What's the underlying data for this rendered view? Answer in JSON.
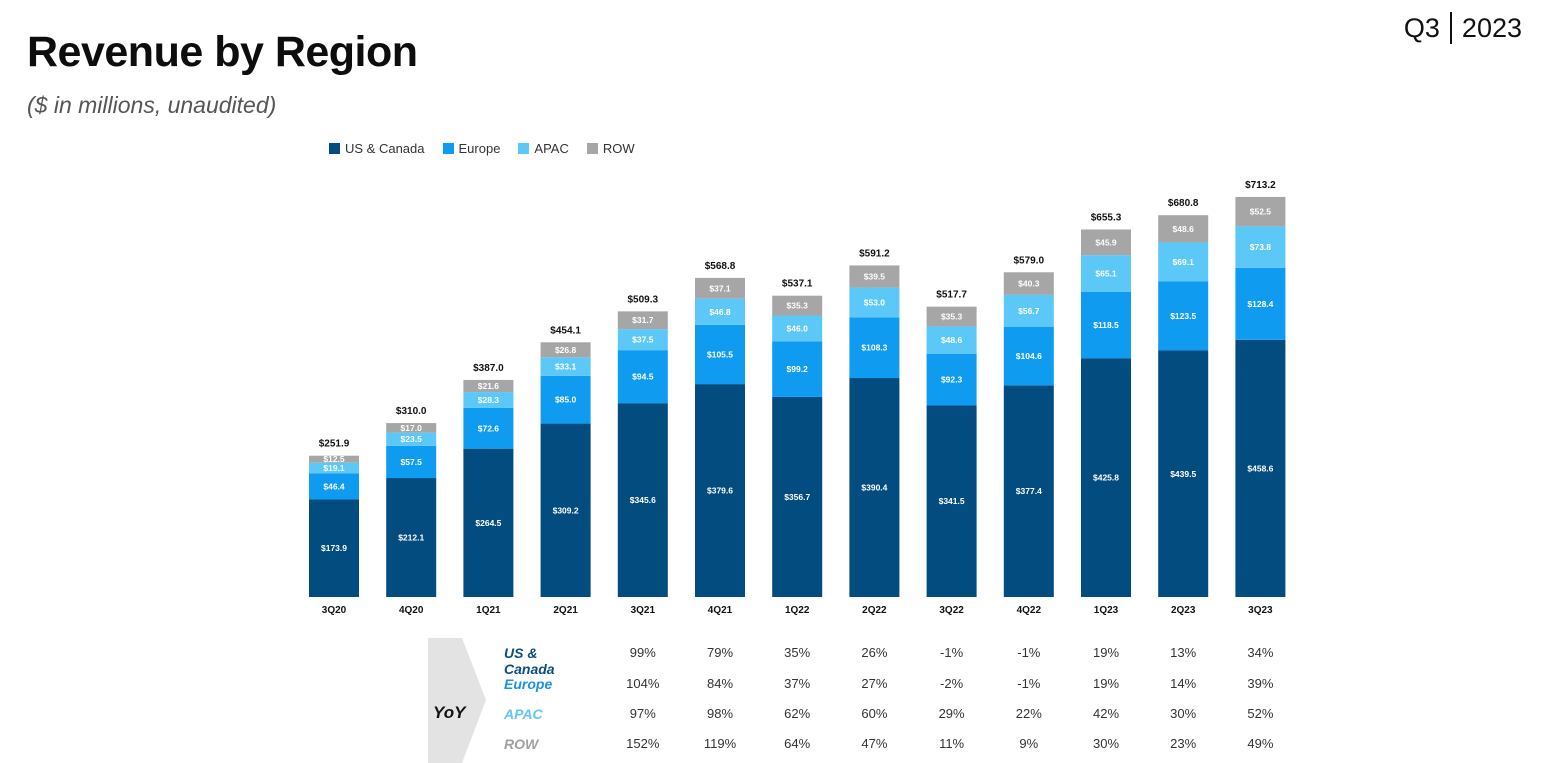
{
  "header": {
    "title": "Revenue by Region",
    "subtitle": "($ in millions, unaudited)",
    "quarter": "Q3",
    "year": "2023"
  },
  "colors": {
    "us_canada": "#034c80",
    "europe": "#0f9bf0",
    "apac": "#5bc8f7",
    "row": "#a6a6a6",
    "yoy_us_canada": "#0b4d7e",
    "yoy_europe": "#1a93e6",
    "yoy_apac": "#63c5f5",
    "yoy_row": "#a0a0a0"
  },
  "chart_data": {
    "type": "bar",
    "stacked": true,
    "legend_position": "top-left",
    "categories": [
      "3Q20",
      "4Q20",
      "1Q21",
      "2Q21",
      "3Q21",
      "4Q21",
      "1Q22",
      "2Q22",
      "3Q22",
      "4Q22",
      "1Q23",
      "2Q23",
      "3Q23"
    ],
    "series": [
      {
        "name": "US & Canada",
        "color_key": "us_canada",
        "values": [
          173.9,
          212.1,
          264.5,
          309.2,
          345.6,
          379.6,
          356.7,
          390.4,
          341.5,
          377.4,
          425.8,
          439.5,
          458.6
        ],
        "labels": [
          "$173.9",
          "$212.1",
          "$264.5",
          "$309.2",
          "$345.6",
          "$379.6",
          "$356.7",
          "$390.4",
          "$341.5",
          "$377.4",
          "$425.8",
          "$439.5",
          "$458.6"
        ]
      },
      {
        "name": "Europe",
        "color_key": "europe",
        "values": [
          46.4,
          57.5,
          72.6,
          85.0,
          94.5,
          105.5,
          99.2,
          108.3,
          92.3,
          104.6,
          118.5,
          123.5,
          128.4
        ],
        "labels": [
          "$46.4",
          "$57.5",
          "$72.6",
          "$85.0",
          "$94.5",
          "$105.5",
          "$99.2",
          "$108.3",
          "$92.3",
          "$104.6",
          "$118.5",
          "$123.5",
          "$128.4"
        ]
      },
      {
        "name": "APAC",
        "color_key": "apac",
        "values": [
          19.1,
          23.5,
          28.3,
          33.1,
          37.5,
          46.8,
          46.0,
          53.0,
          48.6,
          56.7,
          65.1,
          69.1,
          73.8
        ],
        "labels": [
          "$19.1",
          "$23.5",
          "$28.3",
          "$33.1",
          "$37.5",
          "$46.8",
          "$46.0",
          "$53.0",
          "$48.6",
          "$56.7",
          "$65.1",
          "$69.1",
          "$73.8"
        ]
      },
      {
        "name": "ROW",
        "color_key": "row",
        "values": [
          12.5,
          17.0,
          21.6,
          26.8,
          31.7,
          37.1,
          35.3,
          39.5,
          35.3,
          40.3,
          45.9,
          48.6,
          52.5
        ],
        "labels": [
          "$12.5",
          "$17.0",
          "$21.6",
          "$26.8",
          "$31.7",
          "$37.1",
          "$35.3",
          "$39.5",
          "$35.3",
          "$40.3",
          "$45.9",
          "$48.6",
          "$52.5"
        ]
      }
    ],
    "totals": [
      "$251.9",
      "$310.0",
      "$387.0",
      "$454.1",
      "$509.3",
      "$568.8",
      "$537.1",
      "$591.2",
      "$517.7",
      "$579.0",
      "$655.3",
      "$680.8",
      "$713.2"
    ],
    "total_values": [
      251.9,
      310.0,
      387.0,
      454.1,
      509.3,
      568.8,
      537.1,
      591.2,
      517.7,
      579.0,
      655.3,
      680.8,
      713.2
    ],
    "ylim": [
      0,
      713.2
    ],
    "grid": false
  },
  "yoy": {
    "label": "YoY",
    "rows": [
      {
        "name": "US & Canada",
        "color_key": "yoy_us_canada",
        "values": [
          "99%",
          "79%",
          "35%",
          "26%",
          "-1%",
          "-1%",
          "19%",
          "13%",
          "34%"
        ]
      },
      {
        "name": "Europe",
        "color_key": "yoy_europe",
        "values": [
          "104%",
          "84%",
          "37%",
          "27%",
          "-2%",
          "-1%",
          "19%",
          "14%",
          "39%"
        ]
      },
      {
        "name": "APAC",
        "color_key": "yoy_apac",
        "values": [
          "97%",
          "98%",
          "62%",
          "60%",
          "29%",
          "22%",
          "42%",
          "30%",
          "52%"
        ]
      },
      {
        "name": "ROW",
        "color_key": "yoy_row",
        "values": [
          "152%",
          "119%",
          "64%",
          "47%",
          "11%",
          "9%",
          "30%",
          "23%",
          "49%"
        ]
      }
    ]
  }
}
